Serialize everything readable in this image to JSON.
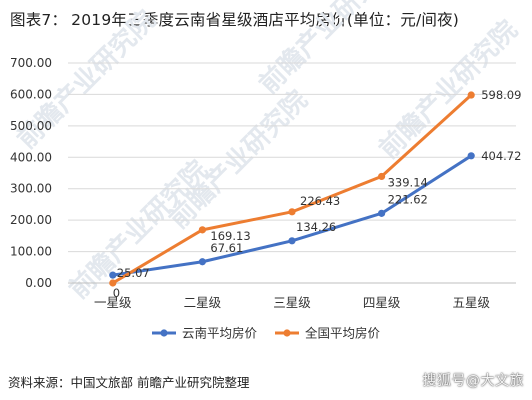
{
  "title": {
    "figure_no": "图表7：",
    "text": "2019年三季度云南省星级酒店平均房价(单位：元/间夜)"
  },
  "chart_data": {
    "type": "line",
    "categories": [
      "一星级",
      "二星级",
      "三星级",
      "四星级",
      "五星级"
    ],
    "series": [
      {
        "name": "云南平均房价",
        "values": [
          25.07,
          67.61,
          134.26,
          221.62,
          404.72
        ],
        "labels": [
          "25.07",
          "67.61",
          "134.26",
          "221.62",
          "404.72"
        ],
        "color": "#4472c4"
      },
      {
        "name": "全国平均房价",
        "values": [
          0,
          169.13,
          226.43,
          339.14,
          598.09
        ],
        "labels": [
          "0",
          "169.13",
          "226.43",
          "339.14",
          "598.09"
        ],
        "color": "#ed7d31"
      }
    ],
    "ylim": [
      0,
      700
    ],
    "yticks": [
      "0.00",
      "100.00",
      "200.00",
      "300.00",
      "400.00",
      "500.00",
      "600.00",
      "700.00"
    ],
    "grid": true,
    "legend_position": "bottom"
  },
  "watermark": "前瞻产业研究院",
  "footer": {
    "source": "资料来源：中国文旅部 前瞻产业研究院整理",
    "credit": "搜狐号@大文旅"
  }
}
